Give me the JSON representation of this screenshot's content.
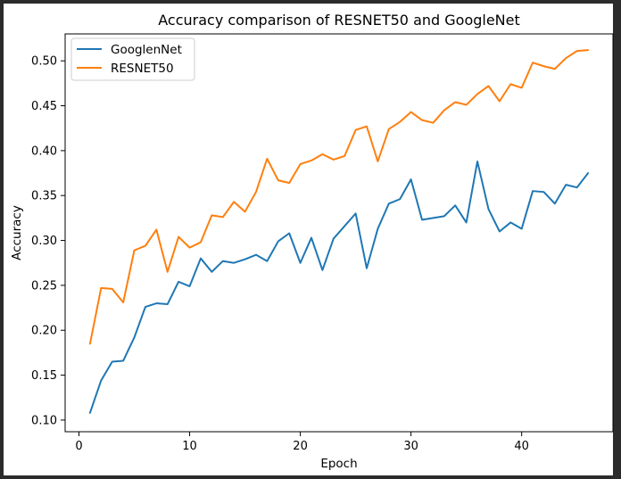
{
  "chart_data": {
    "type": "line",
    "title": "Accuracy comparison of RESNET50 and GoogleNet",
    "xlabel": "Epoch",
    "ylabel": "Accuracy",
    "xlim": [
      -1.25,
      48.25
    ],
    "ylim": [
      0.087,
      0.53
    ],
    "xticks": [
      0,
      10,
      20,
      30,
      40
    ],
    "yticks": [
      0.1,
      0.15,
      0.2,
      0.25,
      0.3,
      0.35,
      0.4,
      0.45,
      0.5
    ],
    "grid": false,
    "legend_position": "upper-left",
    "x": [
      1,
      2,
      3,
      4,
      5,
      6,
      7,
      8,
      9,
      10,
      11,
      12,
      13,
      14,
      15,
      16,
      17,
      18,
      19,
      20,
      21,
      22,
      23,
      24,
      25,
      26,
      27,
      28,
      29,
      30,
      31,
      32,
      33,
      34,
      35,
      36,
      37,
      38,
      39,
      40,
      41,
      42,
      43,
      44,
      45,
      46
    ],
    "series": [
      {
        "name": "GooglenNet",
        "color": "#1f77b4",
        "values": [
          0.108,
          0.144,
          0.165,
          0.166,
          0.192,
          0.226,
          0.23,
          0.229,
          0.254,
          0.249,
          0.28,
          0.265,
          0.277,
          0.275,
          0.279,
          0.284,
          0.277,
          0.299,
          0.308,
          0.275,
          0.303,
          0.267,
          0.302,
          0.316,
          0.33,
          0.269,
          0.313,
          0.341,
          0.346,
          0.368,
          0.323,
          0.325,
          0.327,
          0.339,
          0.32,
          0.388,
          0.335,
          0.31,
          0.32,
          0.313,
          0.355,
          0.354,
          0.341,
          0.362,
          0.359,
          0.375
        ]
      },
      {
        "name": "RESNET50",
        "color": "#ff7f0e",
        "values": [
          0.185,
          0.247,
          0.246,
          0.231,
          0.289,
          0.294,
          0.312,
          0.265,
          0.304,
          0.292,
          0.298,
          0.328,
          0.326,
          0.343,
          0.332,
          0.354,
          0.391,
          0.367,
          0.364,
          0.385,
          0.389,
          0.396,
          0.39,
          0.394,
          0.423,
          0.427,
          0.388,
          0.424,
          0.432,
          0.443,
          0.434,
          0.431,
          0.445,
          0.454,
          0.451,
          0.463,
          0.472,
          0.455,
          0.474,
          0.47,
          0.498,
          0.494,
          0.491,
          0.503,
          0.511,
          0.512
        ]
      }
    ]
  }
}
